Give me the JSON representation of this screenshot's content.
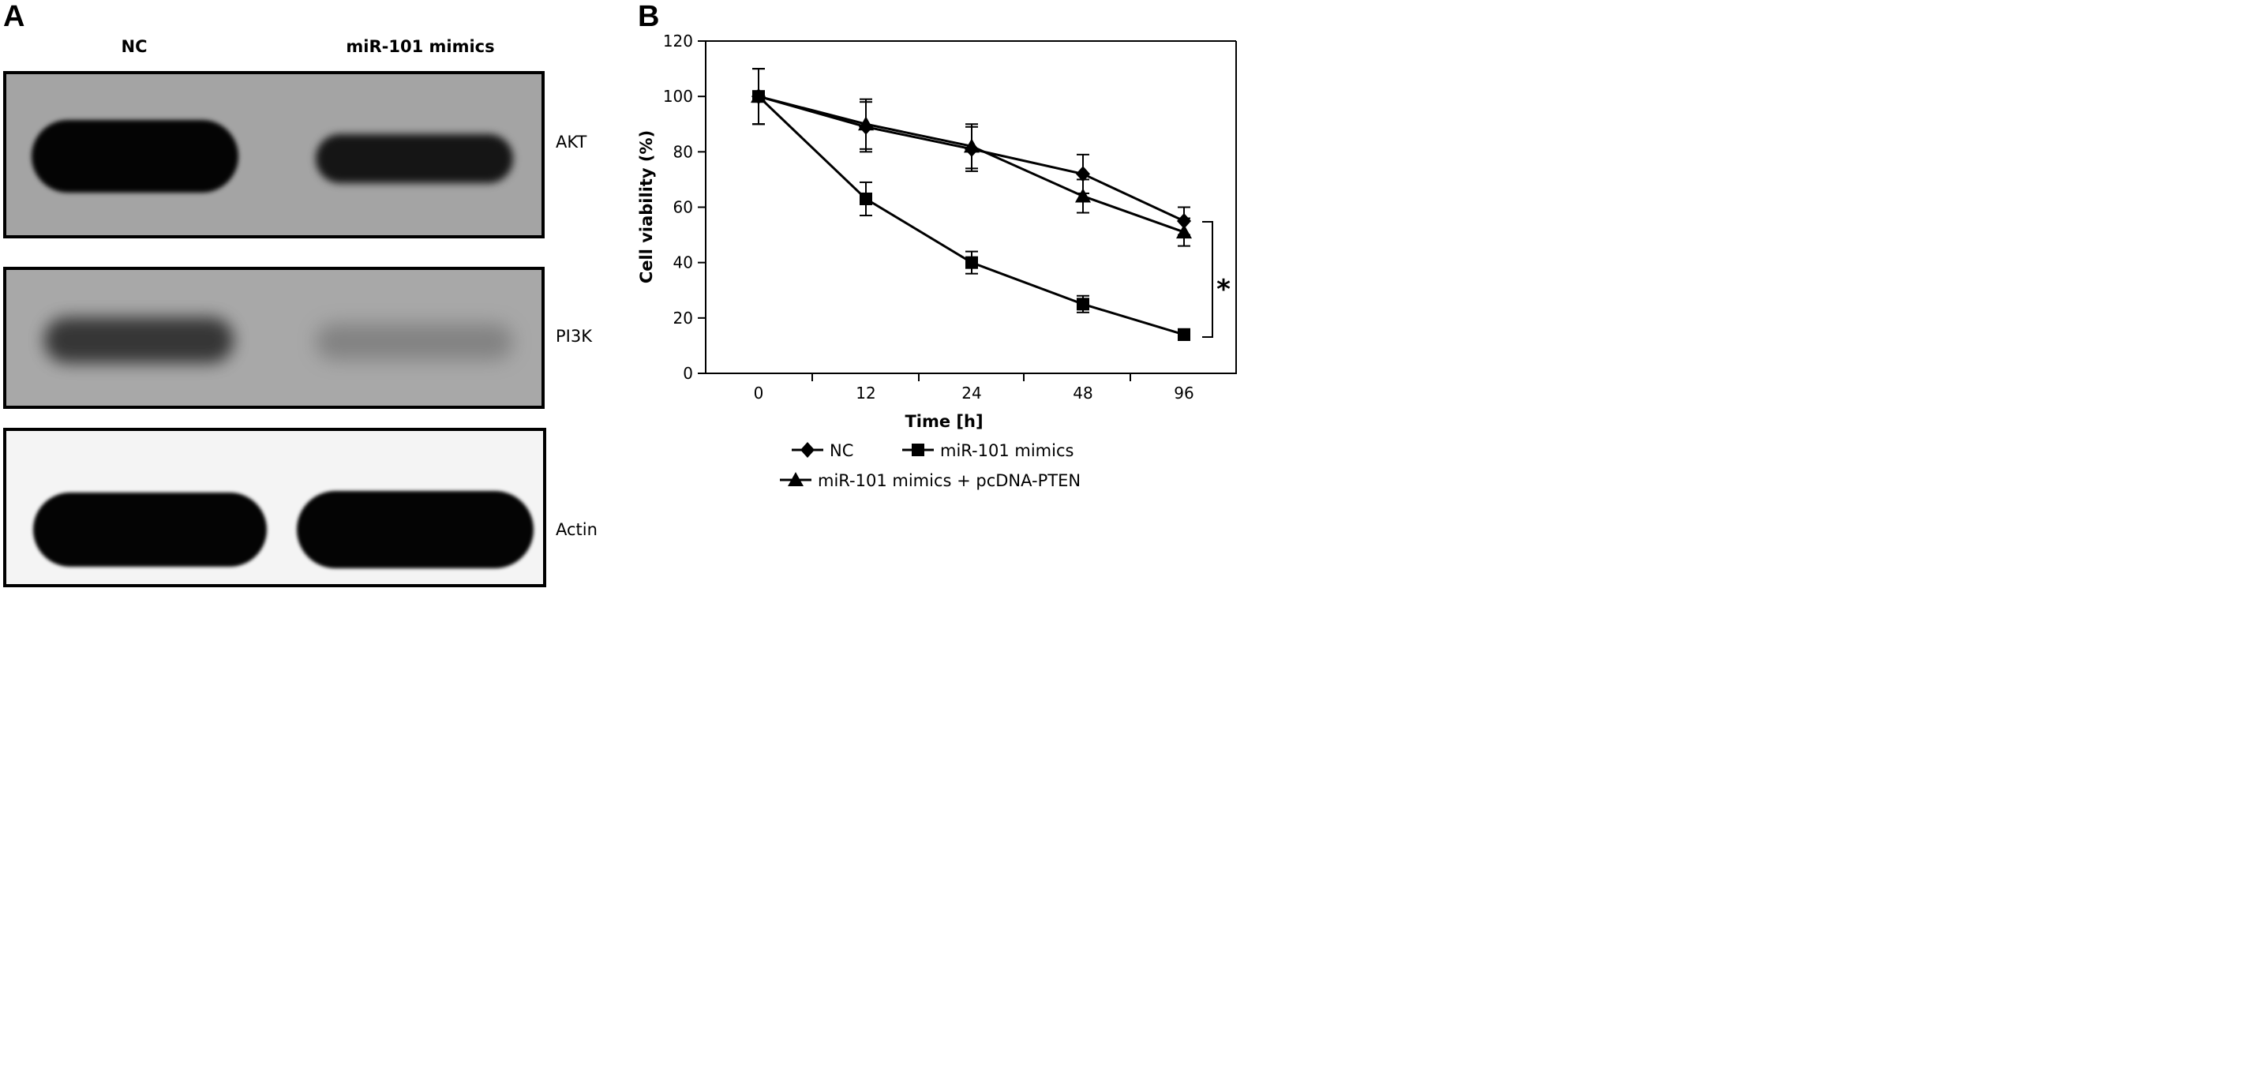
{
  "panel_a": {
    "letter": "A",
    "lanes": [
      "NC",
      "miR-101 mimics"
    ],
    "blots": [
      {
        "label": "AKT",
        "band_intensity": [
          "strong",
          "moderate"
        ]
      },
      {
        "label": "PI3K",
        "band_intensity": [
          "moderate",
          "faint"
        ]
      },
      {
        "label": "Actin",
        "band_intensity": [
          "strong",
          "strong"
        ]
      }
    ]
  },
  "panel_b": {
    "letter": "B"
  },
  "chart_data": {
    "type": "line",
    "categories": [
      "0",
      "12",
      "24",
      "48",
      "96"
    ],
    "xlabel": "Time [h]",
    "ylabel": "Cell viability (%)",
    "ylim": [
      0,
      120
    ],
    "yticks": [
      0,
      20,
      40,
      60,
      80,
      100,
      120
    ],
    "grid": false,
    "legend_position": "bottom",
    "series": [
      {
        "name": "NC",
        "marker": "diamond",
        "values": [
          100,
          89,
          81,
          72,
          55
        ],
        "errors": [
          10,
          9,
          8,
          7,
          5
        ]
      },
      {
        "name": "miR-101 mimics",
        "marker": "square",
        "values": [
          100,
          63,
          40,
          25,
          14
        ],
        "errors": [
          10,
          6,
          4,
          3,
          2
        ]
      },
      {
        "name": "miR-101 mimics + pcDNA-PTEN",
        "marker": "triangle",
        "values": [
          100,
          90,
          82,
          64,
          51
        ],
        "errors": [
          10,
          9,
          8,
          6,
          5
        ]
      }
    ],
    "annotation": {
      "text": "*"
    }
  }
}
